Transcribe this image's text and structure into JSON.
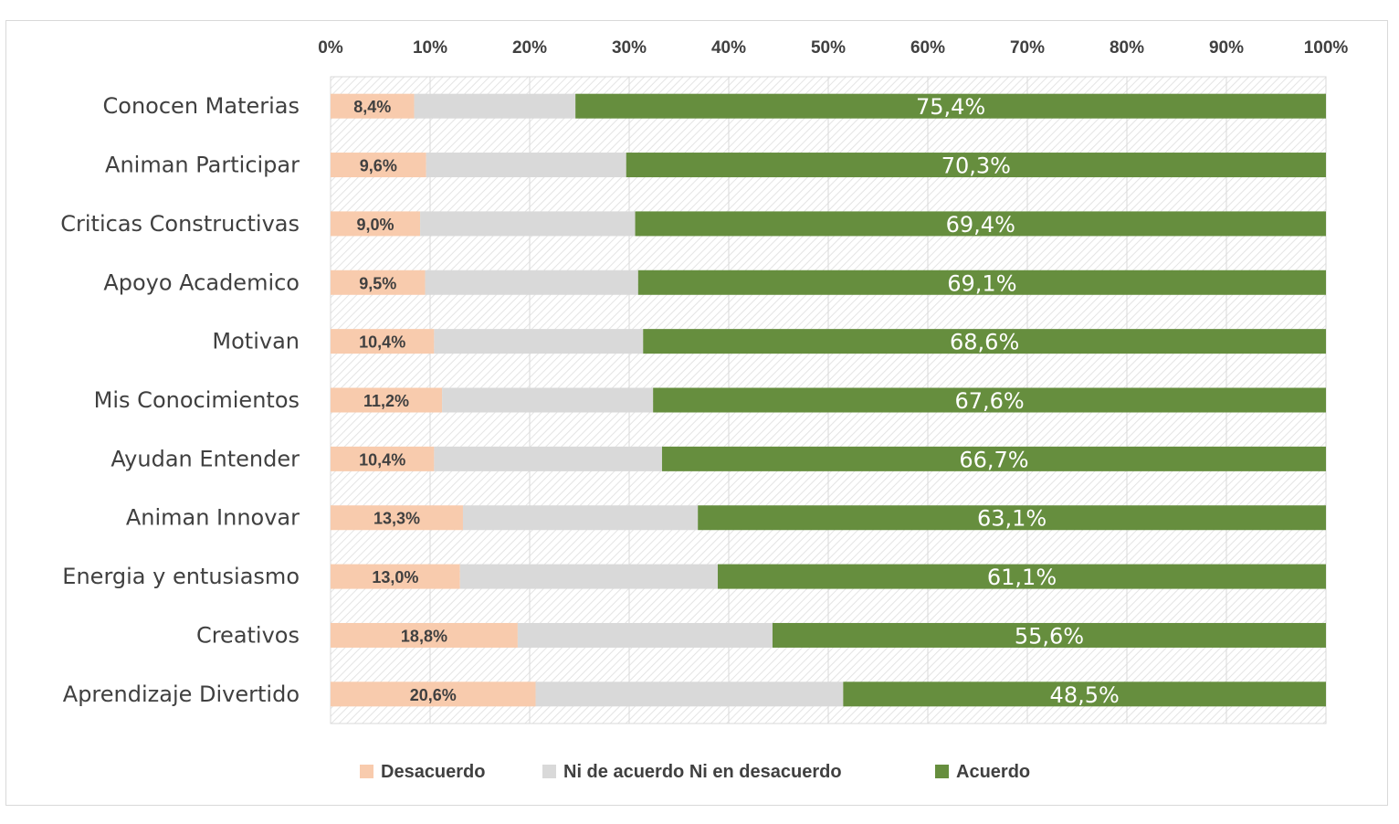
{
  "chart_data": {
    "type": "bar",
    "orientation": "horizontal",
    "stacked": "100%",
    "categories": [
      "Conocen Materias",
      "Animan Participar",
      "Criticas Constructivas",
      "Apoyo Academico",
      "Motivan",
      "Mis Conocimientos",
      "Ayudan Entender",
      "Animan Innovar",
      "Energia y entusiasmo",
      "Creativos",
      "Aprendizaje Divertido"
    ],
    "series": [
      {
        "name": "Desacuerdo",
        "color": "#f8cbad",
        "values": [
          8.4,
          9.6,
          9.0,
          9.5,
          10.4,
          11.2,
          10.4,
          13.3,
          13.0,
          18.8,
          20.6
        ],
        "labels": [
          "8,4%",
          "9,6%",
          "9,0%",
          "9,5%",
          "10,4%",
          "11,2%",
          "10,4%",
          "13,3%",
          "13,0%",
          "18,8%",
          "20,6%"
        ]
      },
      {
        "name": "Ni de acuerdo Ni en desacuerdo",
        "color": "#d9d9d9",
        "values": [
          16.2,
          20.1,
          21.6,
          21.4,
          21.0,
          21.2,
          22.9,
          23.6,
          25.9,
          25.6,
          30.9
        ],
        "labels": []
      },
      {
        "name": "Acuerdo",
        "color": "#668e3e",
        "values": [
          75.4,
          70.3,
          69.4,
          69.1,
          68.6,
          67.6,
          66.7,
          63.1,
          61.1,
          55.6,
          48.5
        ],
        "labels": [
          "75,4%",
          "70,3%",
          "69,4%",
          "69,1%",
          "68,6%",
          "67,6%",
          "66,7%",
          "63,1%",
          "61,1%",
          "55,6%",
          "48,5%"
        ]
      }
    ],
    "xlim": [
      0,
      100
    ],
    "x_ticks": [
      "0%",
      "10%",
      "20%",
      "30%",
      "40%",
      "50%",
      "60%",
      "70%",
      "80%",
      "90%",
      "100%"
    ],
    "x_axis_position": "top",
    "grid": true,
    "legend_position": "bottom",
    "title": "",
    "xlabel": "",
    "ylabel": ""
  }
}
